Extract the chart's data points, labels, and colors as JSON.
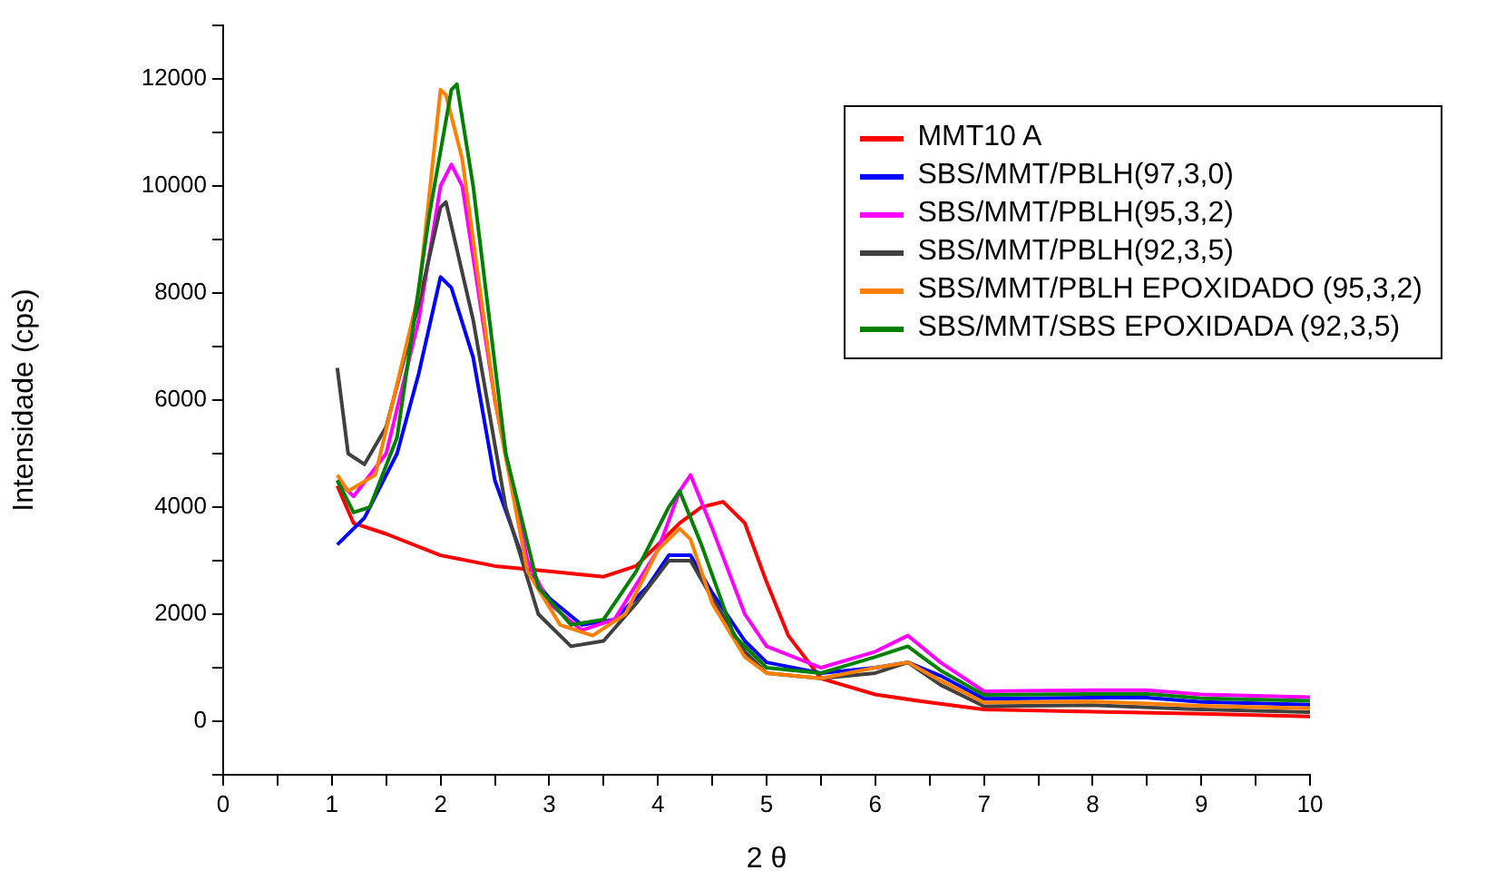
{
  "chart_data": {
    "type": "line",
    "xlabel": "2 θ",
    "ylabel": "Intensidade (cps)",
    "xlim": [
      0,
      10
    ],
    "ylim": [
      -1000,
      13000
    ],
    "xticks": [
      0,
      {
        "value": 0.5,
        "label": null
      },
      1,
      {
        "value": 1.5,
        "label": null
      },
      2,
      {
        "value": 2.5,
        "label": null
      },
      3,
      {
        "value": 3.5,
        "label": null
      },
      4,
      {
        "value": 4.5,
        "label": null
      },
      5,
      {
        "value": 5.5,
        "label": null
      },
      6,
      {
        "value": 6.5,
        "label": null
      },
      7,
      {
        "value": 7.5,
        "label": null
      },
      8,
      {
        "value": 8.5,
        "label": null
      },
      9,
      {
        "value": 9.5,
        "label": null
      },
      10
    ],
    "yticks": [
      {
        "value": -1000,
        "label": null
      },
      0,
      {
        "value": 1000,
        "label": null
      },
      2000,
      {
        "value": 3000,
        "label": null
      },
      4000,
      {
        "value": 5000,
        "label": null
      },
      6000,
      {
        "value": 7000,
        "label": null
      },
      8000,
      {
        "value": 9000,
        "label": null
      },
      10000,
      {
        "value": 11000,
        "label": null
      },
      12000,
      {
        "value": 13000,
        "label": null
      }
    ],
    "grid": false,
    "legend": "top right",
    "marker": "none",
    "line_style": "solid",
    "series": [
      {
        "name": "MMT10 A",
        "color": "#ff0000",
        "x": [
          1.05,
          1.2,
          1.5,
          2.0,
          2.5,
          3.0,
          3.5,
          3.8,
          4.0,
          4.2,
          4.4,
          4.6,
          4.8,
          5.0,
          5.2,
          5.5,
          6.0,
          6.5,
          7,
          8,
          9,
          10
        ],
        "values": [
          4400,
          3700,
          3500,
          3100,
          2900,
          2800,
          2700,
          2900,
          3300,
          3700,
          4000,
          4100,
          3700,
          2600,
          1600,
          800,
          500,
          350,
          220,
          180,
          140,
          90
        ]
      },
      {
        "name": "SBS/MMT/PBLH(97,3,0)",
        "color": "#0000ff",
        "x": [
          1.05,
          1.3,
          1.6,
          1.8,
          2.0,
          2.1,
          2.3,
          2.5,
          2.8,
          3.0,
          3.3,
          3.6,
          3.9,
          4.1,
          4.3,
          4.5,
          4.8,
          5.0,
          5.5,
          6.0,
          6.3,
          6.6,
          7,
          8,
          8.5,
          9,
          10
        ],
        "values": [
          3300,
          3800,
          5000,
          6500,
          8300,
          8100,
          6800,
          4500,
          2800,
          2300,
          1800,
          1900,
          2500,
          3100,
          3100,
          2400,
          1500,
          1100,
          900,
          1000,
          1100,
          850,
          420,
          440,
          440,
          360,
          310
        ]
      },
      {
        "name": "SBS/MMT/PBLH(95,3,2)",
        "color": "#ff00ff",
        "x": [
          1.05,
          1.2,
          1.5,
          1.8,
          2.0,
          2.1,
          2.2,
          2.5,
          2.8,
          3.0,
          3.3,
          3.6,
          4.0,
          4.2,
          4.3,
          4.5,
          4.8,
          5.0,
          5.5,
          6.0,
          6.3,
          6.6,
          7,
          8,
          8.5,
          9,
          10
        ],
        "values": [
          4500,
          4200,
          5000,
          7500,
          10000,
          10400,
          10000,
          6000,
          3000,
          2200,
          1700,
          1900,
          3200,
          4300,
          4600,
          3600,
          2000,
          1400,
          1000,
          1300,
          1600,
          1100,
          560,
          580,
          580,
          500,
          450
        ]
      },
      {
        "name": "SBS/MMT/PBLH(92,3,5)",
        "color": "#404040",
        "x": [
          1.05,
          1.15,
          1.3,
          1.5,
          1.8,
          2.0,
          2.05,
          2.3,
          2.6,
          2.9,
          3.2,
          3.5,
          3.8,
          4.1,
          4.3,
          4.5,
          4.8,
          5.0,
          5.5,
          6.0,
          6.3,
          6.6,
          7,
          8,
          9,
          10
        ],
        "values": [
          6600,
          5000,
          4800,
          5500,
          7800,
          9600,
          9700,
          7500,
          4000,
          2000,
          1400,
          1500,
          2200,
          3000,
          3000,
          2300,
          1300,
          900,
          800,
          900,
          1100,
          680,
          280,
          300,
          220,
          170
        ]
      },
      {
        "name": "SBS/MMT/PBLH EPOXIDADO (95,3,2)",
        "color": "#ff8000",
        "x": [
          1.05,
          1.15,
          1.4,
          1.8,
          2.0,
          2.05,
          2.2,
          2.5,
          2.8,
          3.1,
          3.4,
          3.7,
          4.0,
          4.2,
          4.3,
          4.5,
          4.8,
          5.0,
          5.5,
          6.0,
          6.3,
          6.6,
          7,
          8,
          9,
          10
        ],
        "values": [
          4600,
          4300,
          4600,
          8000,
          11800,
          11700,
          10500,
          6000,
          2800,
          1800,
          1600,
          2000,
          3200,
          3600,
          3400,
          2200,
          1200,
          900,
          800,
          1000,
          1100,
          760,
          350,
          370,
          290,
          240
        ]
      },
      {
        "name": "SBS/MMT/SBS EPOXIDADA (92,3,5)",
        "color": "#008000",
        "x": [
          1.05,
          1.2,
          1.35,
          1.6,
          1.9,
          2.1,
          2.15,
          2.3,
          2.6,
          2.9,
          3.2,
          3.5,
          3.8,
          4.1,
          4.2,
          4.4,
          4.7,
          5.0,
          5.5,
          6.0,
          6.3,
          6.6,
          7,
          8,
          8.5,
          9,
          10
        ],
        "values": [
          4500,
          3900,
          4000,
          5300,
          9500,
          11800,
          11900,
          10000,
          5000,
          2500,
          1800,
          1900,
          2800,
          4000,
          4300,
          3300,
          1600,
          1000,
          900,
          1200,
          1400,
          950,
          490,
          510,
          510,
          430,
          380
        ]
      }
    ]
  }
}
